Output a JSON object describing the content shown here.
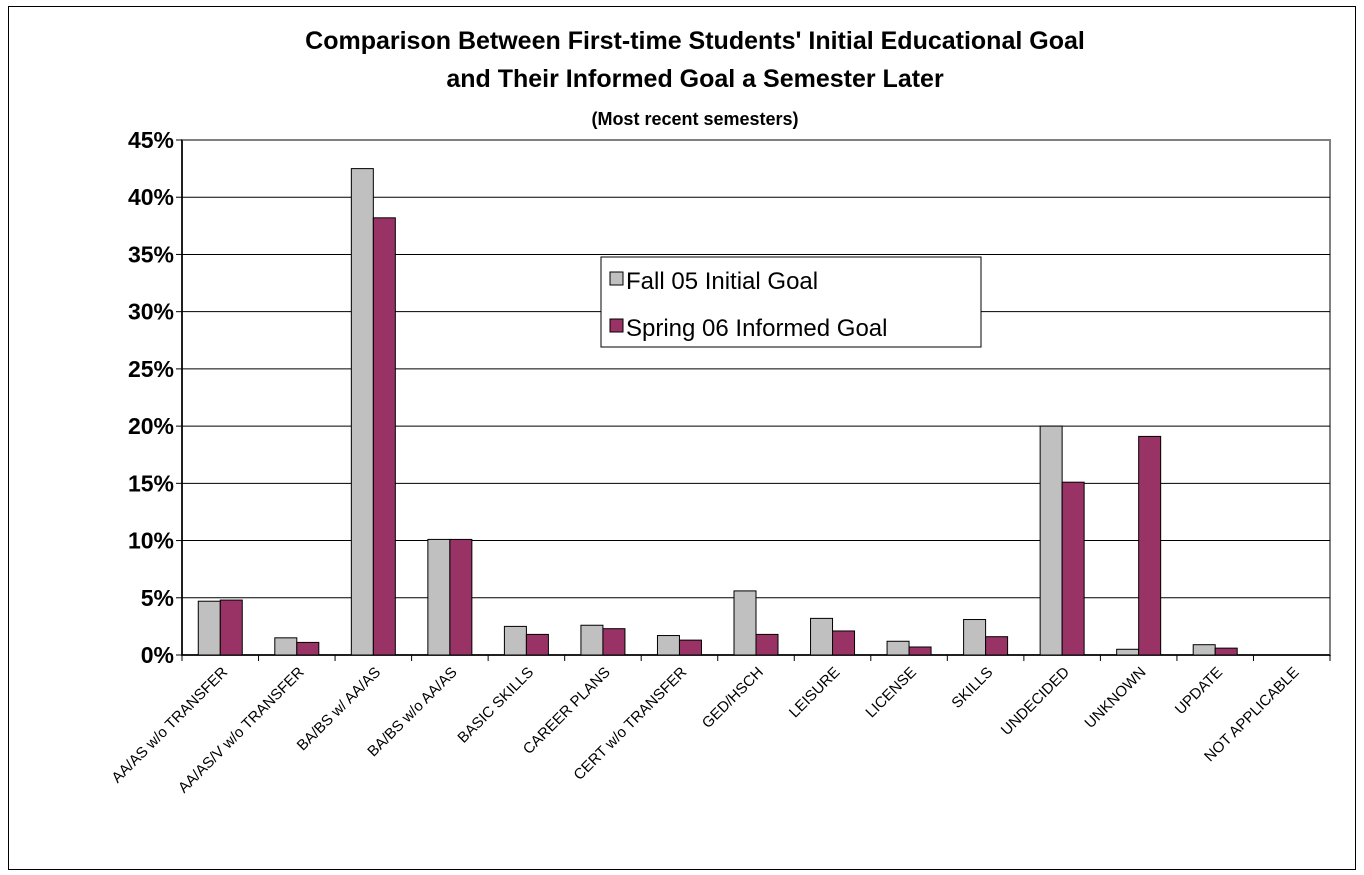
{
  "chart_data": {
    "type": "bar",
    "title": "Comparison Between First-time Students' Initial Educational Goal",
    "title_line2": "and Their Informed Goal a Semester Later",
    "subtitle": "(Most recent semesters)",
    "categories": [
      "AA/AS w/o TRANSFER",
      "AA/AS/V w/o TRANSFER",
      "BA/BS w/ AA/AS",
      "BA/BS w/o AA/AS",
      "BASIC SKILLS",
      "CAREER PLANS",
      "CERT w/o TRANSFER",
      "GED/HSCH",
      "LEISURE",
      "LICENSE",
      "SKILLS",
      "UNDECIDED",
      "UNKNOWN",
      "UPDATE",
      "NOT APPLICABLE"
    ],
    "series": [
      {
        "name": "Fall 05 Initial Goal",
        "color": "#c0c0c0",
        "values": [
          4.7,
          1.5,
          42.5,
          10.1,
          2.5,
          2.6,
          1.7,
          5.6,
          3.2,
          1.2,
          3.1,
          20.0,
          0.5,
          0.9,
          0
        ]
      },
      {
        "name": "Spring 06 Informed Goal",
        "color": "#993366",
        "values": [
          4.8,
          1.1,
          38.2,
          10.1,
          1.8,
          2.3,
          1.3,
          1.8,
          2.1,
          0.7,
          1.6,
          15.1,
          19.1,
          0.6,
          0
        ]
      }
    ],
    "ylim": [
      0,
      45
    ],
    "yticks": [
      "0%",
      "5%",
      "10%",
      "15%",
      "20%",
      "25%",
      "30%",
      "35%",
      "40%",
      "45%"
    ],
    "grid": true,
    "legend_position": "center-top"
  }
}
